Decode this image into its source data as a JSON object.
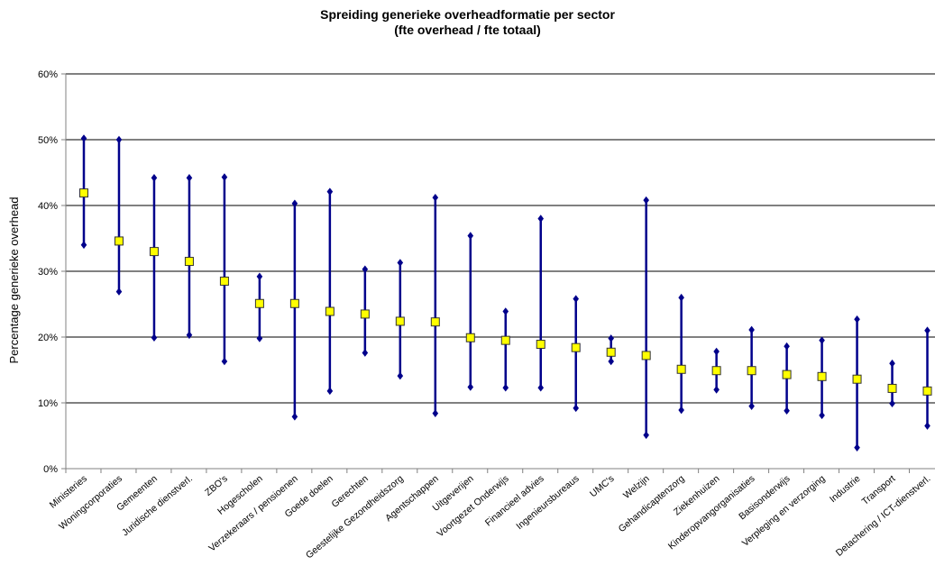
{
  "chart_data": {
    "type": "range",
    "title": "Spreiding generieke overheadformatie per sector",
    "subtitle": "(fte overhead / fte totaal)",
    "xlabel": "",
    "ylabel": "Percentage generieke overhead",
    "ylim": [
      0,
      60
    ],
    "y_ticks": [
      0,
      10,
      20,
      30,
      40,
      50,
      60
    ],
    "y_tick_labels": [
      "0%",
      "10%",
      "20%",
      "30%",
      "40%",
      "50%",
      "60%"
    ],
    "grid": true,
    "legend": "none",
    "categories": [
      "Ministeries",
      "Woningcorporaties",
      "Gemeenten",
      "Juridische dienstverl.",
      "ZBO's",
      "Hogescholen",
      "Verzekeraars / pensioenen",
      "Goede doelen",
      "Gerechten",
      "Geestelijke Gezondheidszorg",
      "Agentschappen",
      "Uitgeverijen",
      "Voortgezet Onderwijs",
      "Financieel advies",
      "Ingenieursbureaus",
      "UMC's",
      "Welzijn",
      "Gehandicaptenzorg",
      "Ziekenhuizen",
      "Kinderopvangorganisaties",
      "Basisonderwijs",
      "Verpleging en verzorging",
      "Industrie",
      "Transport",
      "Detachering / ICT-dienstverl."
    ],
    "series": [
      {
        "role": "max",
        "values": [
          50.2,
          50.0,
          44.2,
          44.2,
          44.3,
          29.2,
          40.3,
          42.1,
          30.3,
          31.3,
          41.2,
          35.4,
          23.9,
          38.0,
          25.8,
          19.8,
          40.8,
          26.0,
          17.8,
          21.1,
          18.6,
          19.5,
          22.7,
          16.0,
          21.0
        ]
      },
      {
        "role": "mean",
        "values": [
          41.9,
          34.6,
          33.0,
          31.5,
          28.5,
          25.1,
          25.1,
          23.9,
          23.5,
          22.4,
          22.3,
          19.9,
          19.5,
          18.9,
          18.4,
          17.7,
          17.2,
          15.1,
          14.9,
          14.9,
          14.3,
          14.0,
          13.6,
          12.2,
          11.8
        ]
      },
      {
        "role": "min",
        "values": [
          34.0,
          26.9,
          19.9,
          20.3,
          16.3,
          19.8,
          7.9,
          11.8,
          17.6,
          14.1,
          8.4,
          12.4,
          12.3,
          12.3,
          9.2,
          16.3,
          5.1,
          8.9,
          12.0,
          9.5,
          8.8,
          8.1,
          3.2,
          9.9,
          6.5
        ]
      }
    ],
    "colors": {
      "line": "#00008b",
      "marker_min_max": "#00008b",
      "marker_mean_fill": "#ffff00",
      "marker_mean_stroke": "#333333",
      "grid": "#000000",
      "axis": "#808080"
    }
  }
}
